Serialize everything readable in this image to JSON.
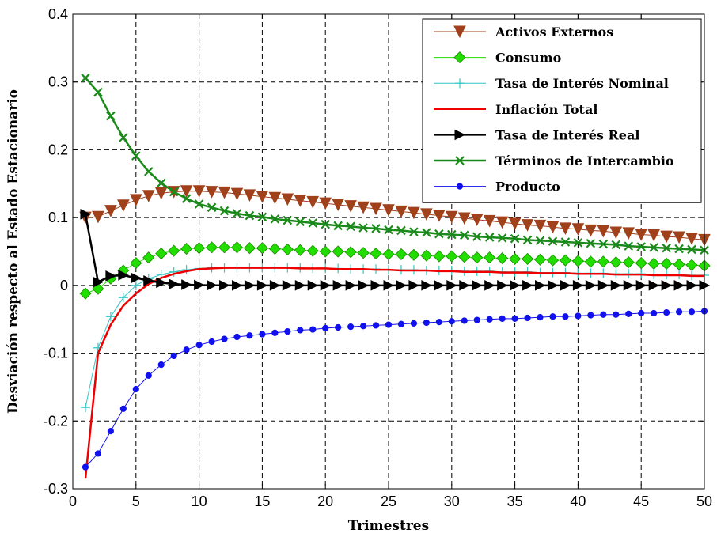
{
  "chart_data": {
    "type": "line",
    "title": "",
    "xlabel": "Trimestres",
    "ylabel": "Desviación respecto al Estado Estacionario",
    "xlim": [
      0,
      50
    ],
    "ylim": [
      -0.3,
      0.4
    ],
    "xticks": [
      0,
      5,
      10,
      15,
      20,
      25,
      30,
      35,
      40,
      45,
      50
    ],
    "yticks": [
      -0.3,
      -0.2,
      -0.1,
      0,
      0.1,
      0.2,
      0.3,
      0.4
    ],
    "xtick_labels": [
      "0",
      "5",
      "10",
      "15",
      "20",
      "25",
      "30",
      "35",
      "40",
      "45",
      "50"
    ],
    "ytick_labels": [
      "-0.3",
      "-0.2",
      "-0.1",
      "0",
      "0.1",
      "0.2",
      "0.3",
      "0.4"
    ],
    "grid": true,
    "legend_position": "top-right",
    "series": [
      {
        "name": "Activos Externos",
        "color": "#a0411b",
        "marker": "triangle-down",
        "line_width": 1,
        "x": [
          1,
          2,
          3,
          4,
          5,
          6,
          7,
          8,
          9,
          10,
          11,
          12,
          13,
          14,
          15,
          16,
          17,
          18,
          19,
          20,
          21,
          22,
          23,
          24,
          25,
          26,
          27,
          28,
          29,
          30,
          31,
          32,
          33,
          34,
          35,
          36,
          37,
          38,
          39,
          40,
          41,
          42,
          43,
          44,
          45,
          46,
          47,
          48,
          49,
          50
        ],
        "y": [
          0.1,
          0.101,
          0.11,
          0.118,
          0.126,
          0.132,
          0.136,
          0.138,
          0.139,
          0.139,
          0.138,
          0.137,
          0.135,
          0.133,
          0.131,
          0.129,
          0.127,
          0.125,
          0.123,
          0.121,
          0.119,
          0.117,
          0.115,
          0.113,
          0.111,
          0.109,
          0.107,
          0.105,
          0.103,
          0.101,
          0.099,
          0.097,
          0.095,
          0.093,
          0.091,
          0.089,
          0.088,
          0.086,
          0.084,
          0.083,
          0.081,
          0.08,
          0.078,
          0.077,
          0.075,
          0.074,
          0.072,
          0.071,
          0.069,
          0.067
        ]
      },
      {
        "name": "Consumo",
        "color": "#22dd00",
        "marker": "diamond",
        "line_width": 1,
        "x": [
          1,
          2,
          3,
          4,
          5,
          6,
          7,
          8,
          9,
          10,
          11,
          12,
          13,
          14,
          15,
          16,
          17,
          18,
          19,
          20,
          21,
          22,
          23,
          24,
          25,
          26,
          27,
          28,
          29,
          30,
          31,
          32,
          33,
          34,
          35,
          36,
          37,
          38,
          39,
          40,
          41,
          42,
          43,
          44,
          45,
          46,
          47,
          48,
          49,
          50
        ],
        "y": [
          -0.012,
          -0.005,
          0.01,
          0.022,
          0.033,
          0.041,
          0.047,
          0.051,
          0.054,
          0.055,
          0.056,
          0.056,
          0.056,
          0.055,
          0.055,
          0.054,
          0.053,
          0.052,
          0.051,
          0.05,
          0.05,
          0.049,
          0.048,
          0.047,
          0.046,
          0.046,
          0.045,
          0.044,
          0.043,
          0.043,
          0.042,
          0.041,
          0.041,
          0.04,
          0.039,
          0.039,
          0.038,
          0.037,
          0.037,
          0.036,
          0.035,
          0.035,
          0.034,
          0.034,
          0.033,
          0.032,
          0.032,
          0.031,
          0.03,
          0.029
        ]
      },
      {
        "name": "Tasa de Interés Nominal",
        "color": "#33c6c6",
        "marker": "plus",
        "line_width": 1,
        "x": [
          1,
          2,
          3,
          4,
          5,
          6,
          7,
          8,
          9,
          10,
          11,
          12,
          13,
          14,
          15,
          16,
          17,
          18,
          19,
          20,
          21,
          22,
          23,
          24,
          25,
          26,
          27,
          28,
          29,
          30,
          31,
          32,
          33,
          34,
          35,
          36,
          37,
          38,
          39,
          40,
          41,
          42,
          43,
          44,
          45,
          46,
          47,
          48,
          49,
          50
        ],
        "y": [
          -0.18,
          -0.092,
          -0.046,
          -0.018,
          0.0,
          0.01,
          0.016,
          0.02,
          0.023,
          0.025,
          0.026,
          0.026,
          0.026,
          0.026,
          0.026,
          0.026,
          0.026,
          0.026,
          0.025,
          0.025,
          0.025,
          0.024,
          0.024,
          0.024,
          0.023,
          0.023,
          0.023,
          0.022,
          0.022,
          0.022,
          0.021,
          0.021,
          0.021,
          0.02,
          0.02,
          0.02,
          0.019,
          0.019,
          0.019,
          0.018,
          0.018,
          0.018,
          0.017,
          0.017,
          0.017,
          0.016,
          0.016,
          0.016,
          0.015,
          0.015
        ]
      },
      {
        "name": "Inflación Total",
        "color": "#ee0000",
        "marker": "none",
        "line_width": 2.5,
        "x": [
          1,
          2,
          3,
          4,
          5,
          6,
          7,
          8,
          9,
          10,
          11,
          12,
          13,
          14,
          15,
          16,
          17,
          18,
          19,
          20,
          21,
          22,
          23,
          24,
          25,
          26,
          27,
          28,
          29,
          30,
          31,
          32,
          33,
          34,
          35,
          36,
          37,
          38,
          39,
          40,
          41,
          42,
          43,
          44,
          45,
          46,
          47,
          48,
          49,
          50
        ],
        "y": [
          -0.285,
          -0.1,
          -0.058,
          -0.03,
          -0.012,
          0.002,
          0.011,
          0.017,
          0.021,
          0.024,
          0.025,
          0.026,
          0.026,
          0.026,
          0.026,
          0.026,
          0.026,
          0.025,
          0.025,
          0.025,
          0.024,
          0.024,
          0.024,
          0.023,
          0.023,
          0.022,
          0.022,
          0.022,
          0.021,
          0.021,
          0.02,
          0.02,
          0.02,
          0.019,
          0.019,
          0.019,
          0.018,
          0.018,
          0.018,
          0.017,
          0.017,
          0.017,
          0.016,
          0.016,
          0.016,
          0.015,
          0.015,
          0.015,
          0.014,
          0.014
        ]
      },
      {
        "name": "Tasa de Interés Real",
        "color": "#000000",
        "marker": "triangle-right",
        "line_width": 2.5,
        "x": [
          1,
          2,
          3,
          4,
          5,
          6,
          7,
          8,
          9,
          10,
          11,
          12,
          13,
          14,
          15,
          16,
          17,
          18,
          19,
          20,
          21,
          22,
          23,
          24,
          25,
          26,
          27,
          28,
          29,
          30,
          31,
          32,
          33,
          34,
          35,
          36,
          37,
          38,
          39,
          40,
          41,
          42,
          43,
          44,
          45,
          46,
          47,
          48,
          49,
          50
        ],
        "y": [
          0.105,
          0.005,
          0.014,
          0.015,
          0.011,
          0.007,
          0.004,
          0.002,
          0.001,
          0.0005,
          0.0002,
          0.0001,
          0,
          0,
          0,
          0,
          0,
          0,
          0,
          0,
          0,
          0,
          0,
          0,
          0,
          0,
          0,
          0,
          0,
          0,
          0,
          0,
          0,
          0,
          0,
          0,
          0,
          0,
          0,
          0,
          0,
          0,
          0,
          0,
          0,
          0,
          0,
          0,
          0,
          0
        ]
      },
      {
        "name": "Términos de Intercambio",
        "color": "#1a8a1a",
        "marker": "x",
        "line_width": 2.5,
        "x": [
          1,
          2,
          3,
          4,
          5,
          6,
          7,
          8,
          9,
          10,
          11,
          12,
          13,
          14,
          15,
          16,
          17,
          18,
          19,
          20,
          21,
          22,
          23,
          24,
          25,
          26,
          27,
          28,
          29,
          30,
          31,
          32,
          33,
          34,
          35,
          36,
          37,
          38,
          39,
          40,
          41,
          42,
          43,
          44,
          45,
          46,
          47,
          48,
          49,
          50
        ],
        "y": [
          0.306,
          0.285,
          0.25,
          0.218,
          0.191,
          0.168,
          0.151,
          0.138,
          0.128,
          0.12,
          0.115,
          0.11,
          0.106,
          0.103,
          0.101,
          0.098,
          0.096,
          0.094,
          0.092,
          0.09,
          0.088,
          0.087,
          0.085,
          0.084,
          0.082,
          0.081,
          0.079,
          0.078,
          0.076,
          0.075,
          0.074,
          0.072,
          0.071,
          0.07,
          0.069,
          0.067,
          0.066,
          0.065,
          0.064,
          0.063,
          0.062,
          0.061,
          0.06,
          0.058,
          0.057,
          0.056,
          0.055,
          0.054,
          0.053,
          0.052
        ]
      },
      {
        "name": "Producto",
        "color": "#1111ee",
        "marker": "circle",
        "line_width": 1,
        "x": [
          1,
          2,
          3,
          4,
          5,
          6,
          7,
          8,
          9,
          10,
          11,
          12,
          13,
          14,
          15,
          16,
          17,
          18,
          19,
          20,
          21,
          22,
          23,
          24,
          25,
          26,
          27,
          28,
          29,
          30,
          31,
          32,
          33,
          34,
          35,
          36,
          37,
          38,
          39,
          40,
          41,
          42,
          43,
          44,
          45,
          46,
          47,
          48,
          49,
          50
        ],
        "y": [
          -0.268,
          -0.248,
          -0.215,
          -0.182,
          -0.153,
          -0.133,
          -0.117,
          -0.104,
          -0.095,
          -0.088,
          -0.083,
          -0.079,
          -0.076,
          -0.074,
          -0.072,
          -0.07,
          -0.068,
          -0.066,
          -0.065,
          -0.063,
          -0.062,
          -0.061,
          -0.06,
          -0.059,
          -0.058,
          -0.057,
          -0.056,
          -0.055,
          -0.054,
          -0.053,
          -0.052,
          -0.051,
          -0.05,
          -0.049,
          -0.049,
          -0.048,
          -0.047,
          -0.046,
          -0.046,
          -0.045,
          -0.044,
          -0.043,
          -0.043,
          -0.042,
          -0.041,
          -0.041,
          -0.04,
          -0.039,
          -0.039,
          -0.038
        ]
      }
    ]
  }
}
